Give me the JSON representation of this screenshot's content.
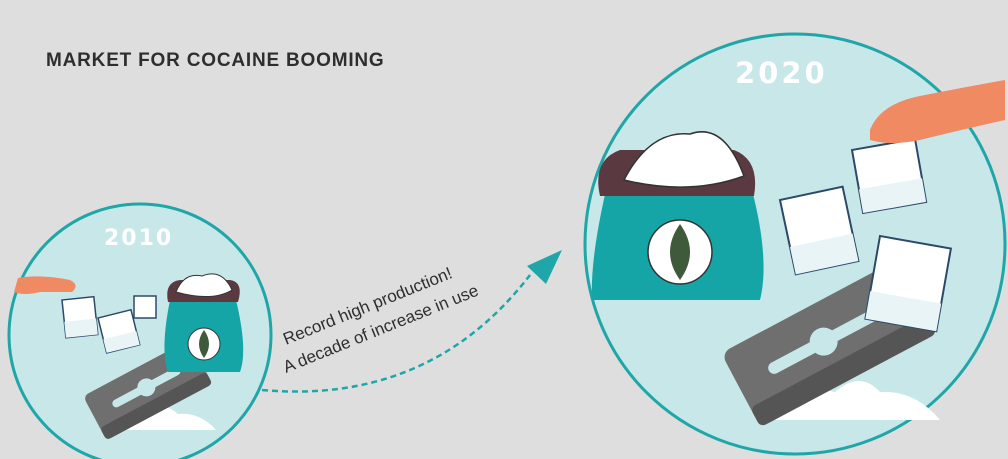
{
  "title": "MARKET FOR COCAINE BOOMING",
  "year_left": "2010",
  "year_right": "2020",
  "arrow_caption": {
    "line1": "Record high production!",
    "line2": "A decade of increase in use"
  },
  "colors": {
    "background": "#dedede",
    "circle_fill": "#c7e7e9",
    "circle_border": "#1fa6a8",
    "bag": "#16a5a7",
    "bag_top": "#5a3a40",
    "powder": "#ffffff",
    "blade": "#6f6f6f",
    "hand": "#f08a63",
    "arrow": "#1fa6a8"
  },
  "icons": [
    "leaf-icon",
    "razor-blade-icon",
    "powder-bag-icon",
    "hand-icon",
    "baggie-icon"
  ]
}
